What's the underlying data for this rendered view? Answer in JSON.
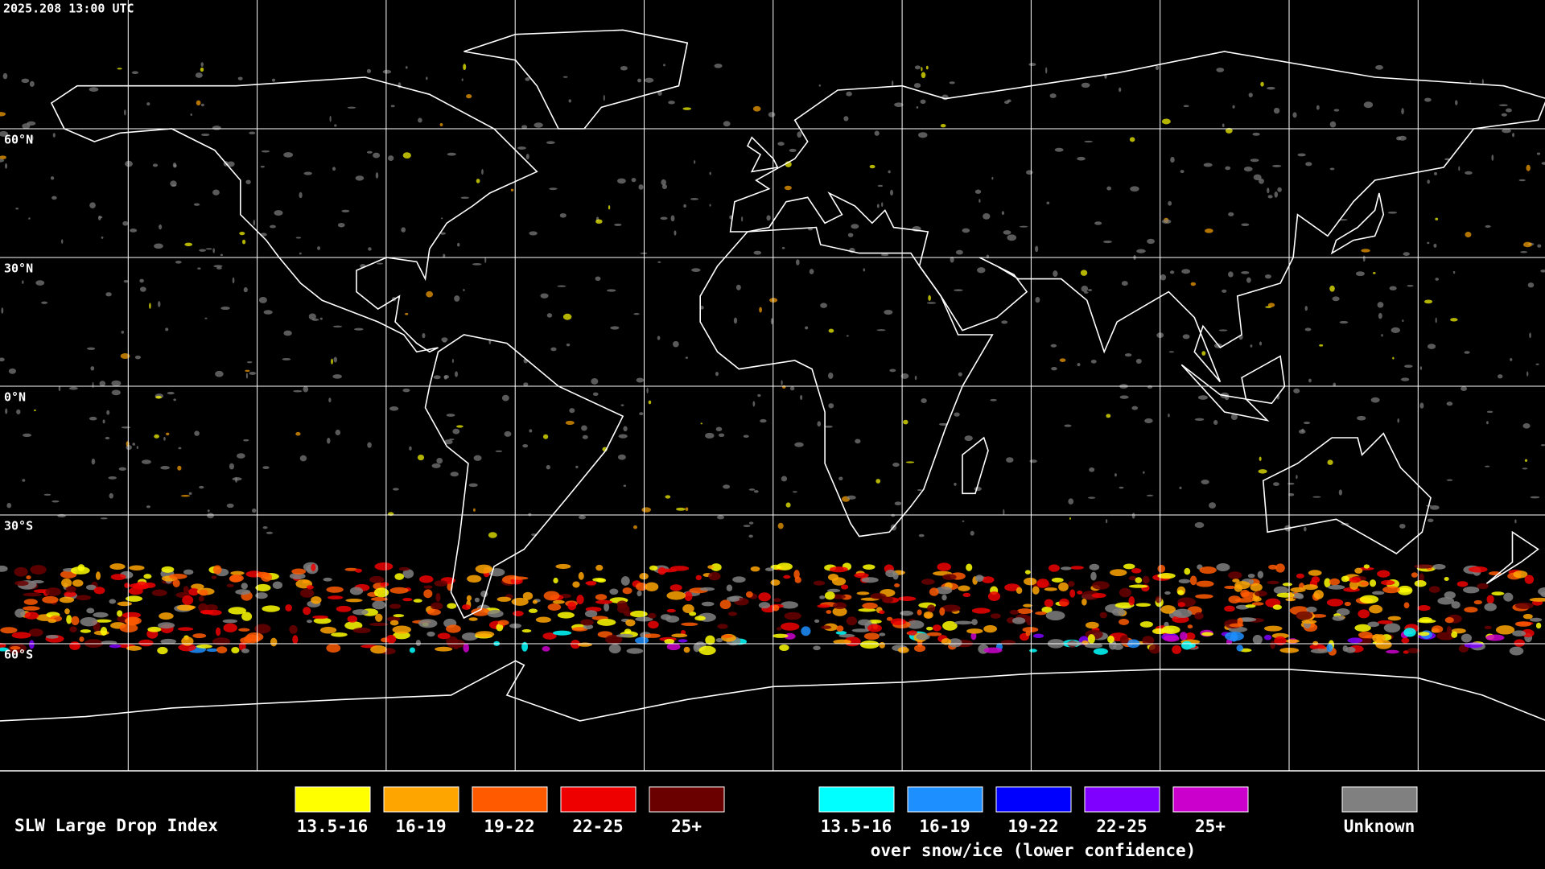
{
  "header": {
    "timestamp": "2025.208 13:00 UTC"
  },
  "map": {
    "lat_labels": [
      "60°N",
      "30°N",
      "0°N",
      "30°S",
      "60°S"
    ]
  },
  "legend": {
    "title": "SLW Large Drop Index",
    "groups": [
      {
        "items": [
          {
            "label": "13.5-16",
            "color": "#ffff00"
          },
          {
            "label": "16-19",
            "color": "#ffa500"
          },
          {
            "label": "19-22",
            "color": "#ff5a00"
          },
          {
            "label": "22-25",
            "color": "#ee0000"
          },
          {
            "label": "25+",
            "color": "#6b0000"
          }
        ]
      },
      {
        "items": [
          {
            "label": "13.5-16",
            "color": "#00ffff"
          },
          {
            "label": "16-19",
            "color": "#1e8fff"
          },
          {
            "label": "19-22",
            "color": "#0000ff"
          },
          {
            "label": "22-25",
            "color": "#7f00ff"
          },
          {
            "label": "25+",
            "color": "#cc00cc"
          }
        ],
        "note": "over snow/ice (lower confidence)"
      }
    ],
    "unknown": {
      "label": "Unknown",
      "color": "#808080"
    }
  }
}
